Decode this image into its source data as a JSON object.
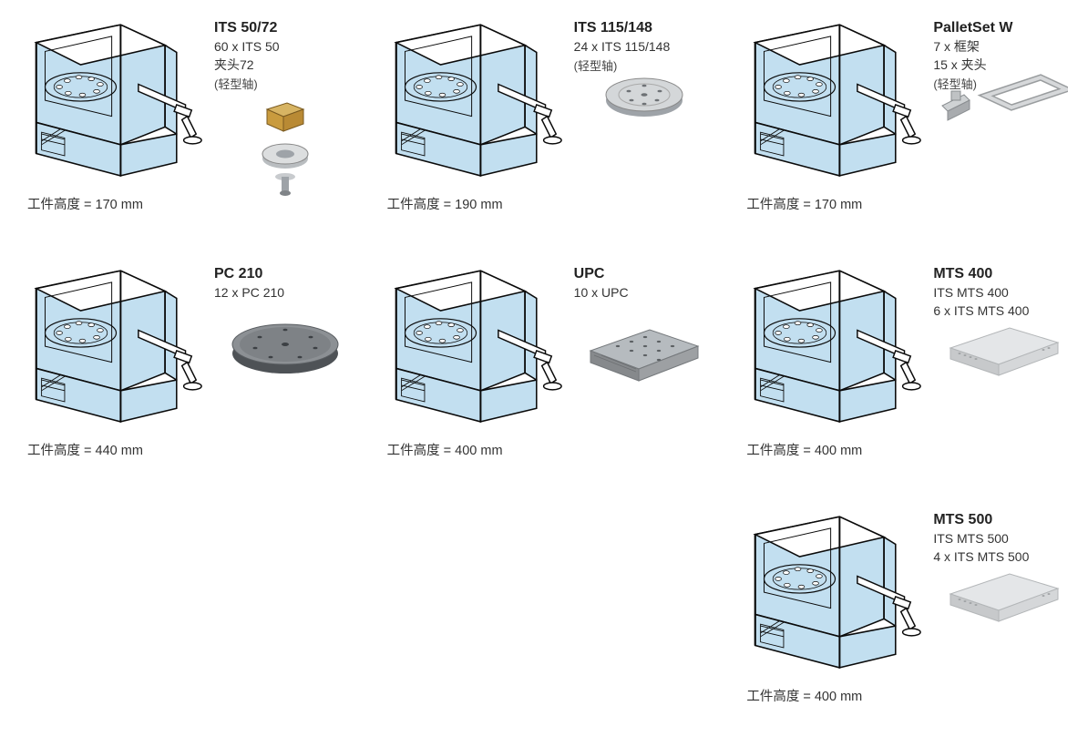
{
  "colors": {
    "machine_fill": "#c2dff0",
    "machine_stroke": "#0a0a0a",
    "text_dark": "#222222",
    "text_body": "#333333",
    "pallet_grey": "#b9bdc0",
    "pallet_dark": "#707478",
    "pallet_light": "#dcdedf",
    "gold": "#cfa54a",
    "steel": "#9ea3a8"
  },
  "machine_svg": {
    "width": 195,
    "height": 185
  },
  "items": [
    {
      "id": "its50",
      "title": "ITS 50/72",
      "lines": [
        "60 x ITS 50",
        "夹头72"
      ],
      "note": "(轻型轴)",
      "height_label": "工件高度 = 170 mm",
      "thumb": "chuck_stack"
    },
    {
      "id": "its115",
      "title": "ITS 115/148",
      "lines": [
        "24 x ITS 115/148"
      ],
      "note": "(轻型轴)",
      "height_label": "工件高度 = 190 mm",
      "thumb": "round_disk"
    },
    {
      "id": "palletset",
      "title": "PalletSet W",
      "lines": [
        "7 x 框架",
        "15 x 夹头"
      ],
      "note": "(轻型轴)",
      "height_label": "工件高度  = 170 mm",
      "thumb": "frame"
    },
    {
      "id": "pc210",
      "title": "PC 210",
      "lines": [
        "12 x PC 210"
      ],
      "note": null,
      "height_label": "工件高度 = 440 mm",
      "thumb": "dark_disk"
    },
    {
      "id": "upc",
      "title": "UPC",
      "lines": [
        "10 x UPC"
      ],
      "note": null,
      "height_label": "工件高度  = 400 mm",
      "thumb": "square_ridged"
    },
    {
      "id": "mts400",
      "title": "MTS 400",
      "lines": [
        "ITS MTS 400",
        "6 x ITS MTS 400"
      ],
      "note": null,
      "height_label": "工件高度  = 400 mm",
      "thumb": "square_flat"
    },
    {
      "id": "mts500",
      "title": "MTS 500",
      "lines": [
        "ITS MTS 500",
        "4 x ITS MTS 500"
      ],
      "note": null,
      "height_label": "工件高度  = 400 mm",
      "thumb": "square_flat"
    }
  ]
}
